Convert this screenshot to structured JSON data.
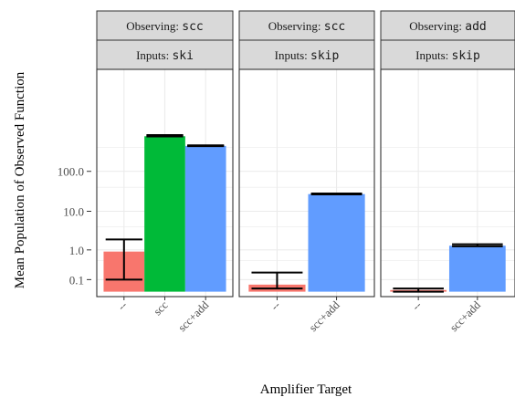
{
  "chart_data": {
    "type": "bar",
    "y_scale": "symlog",
    "xlabel": "Amplifier Target",
    "ylabel": "Mean  Population  of  Observed  Function",
    "y_ticks": [
      0.1,
      1.0,
      10.0,
      100.0
    ],
    "y_tick_labels": [
      "0.1",
      "1.0",
      "10.0",
      "100.0"
    ],
    "grid": true,
    "legend": "none",
    "colors": {
      "--": "#f8766d",
      "scc": "#00ba38",
      "scc+add": "#619cff",
      "strip_bg": "#d9d9d9",
      "panel_border": "#333333",
      "grid": "#ebebeb"
    },
    "panels": [
      {
        "strip_top_prefix": "Observing: ",
        "strip_top_code": "scc",
        "strip_bottom_prefix": "Inputs: ",
        "strip_bottom_code": "ski",
        "bars": [
          {
            "category": "--",
            "value": 0.9,
            "err_low": 0.1,
            "err_high": 1.9
          },
          {
            "category": "scc",
            "value": 750,
            "err_low": 740,
            "err_high": 800
          },
          {
            "category": "scc+add",
            "value": 430,
            "err_low": 425,
            "err_high": 445
          }
        ]
      },
      {
        "strip_top_prefix": "Observing: ",
        "strip_top_code": "scc",
        "strip_bottom_prefix": "Inputs: ",
        "strip_bottom_code": "skip",
        "bars": [
          {
            "category": "--",
            "value": 0.05,
            "err_low": 0.02,
            "err_high": 0.2
          },
          {
            "category": "scc+add",
            "value": 27,
            "err_low": 26.5,
            "err_high": 28
          }
        ]
      },
      {
        "strip_top_prefix": "Observing: ",
        "strip_top_code": "add",
        "strip_bottom_prefix": "Inputs: ",
        "strip_bottom_code": "skip",
        "bars": [
          {
            "category": "--",
            "value": 0.01,
            "err_low": 0.0,
            "err_high": 0.02
          },
          {
            "category": "scc+add",
            "value": 1.3,
            "err_low": 1.25,
            "err_high": 1.42
          }
        ]
      }
    ]
  }
}
